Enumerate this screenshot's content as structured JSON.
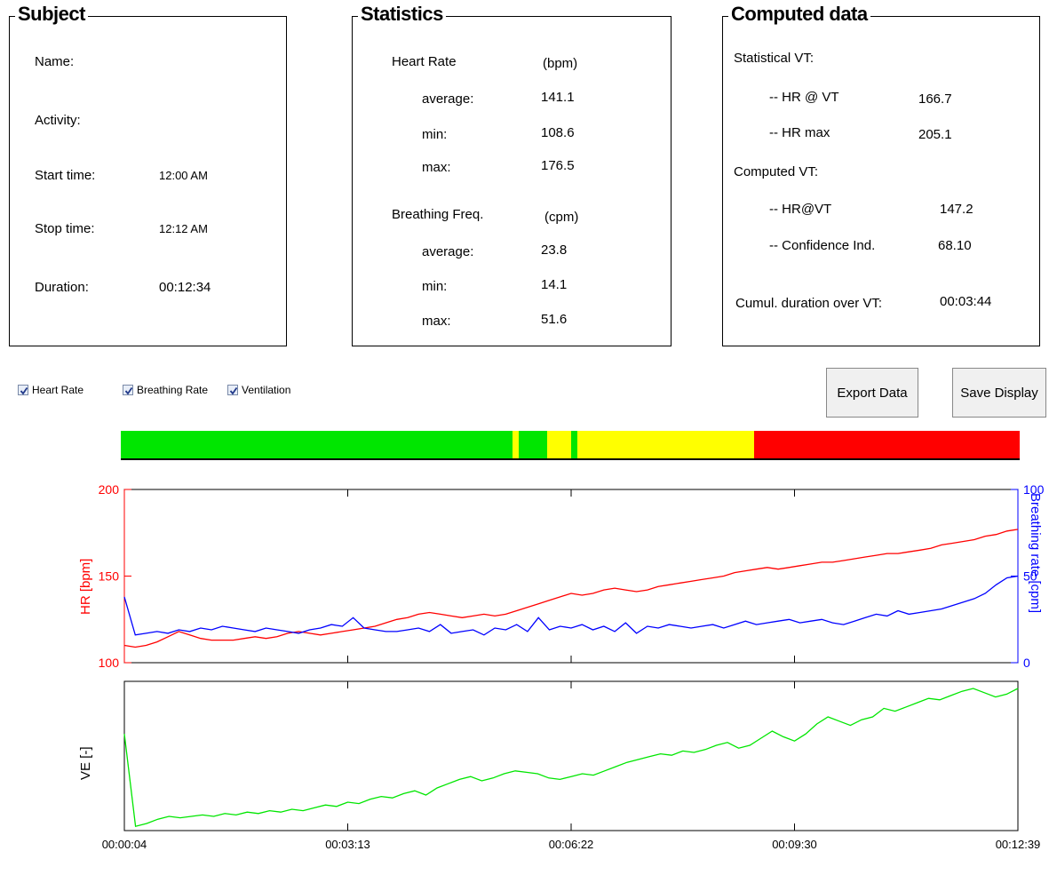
{
  "subject": {
    "title": "Subject",
    "name_label": "Name:",
    "activity_label": "Activity:",
    "start_label": "Start time:",
    "start_value": "12:00 AM",
    "stop_label": "Stop time:",
    "stop_value": "12:12 AM",
    "duration_label": "Duration:",
    "duration_value": "00:12:34"
  },
  "statistics": {
    "title": "Statistics",
    "hr_label": "Heart Rate",
    "hr_unit": "(bpm)",
    "hr_avg_label": "average:",
    "hr_avg": "141.1",
    "hr_min_label": "min:",
    "hr_min": "108.6",
    "hr_max_label": "max:",
    "hr_max": "176.5",
    "bf_label": "Breathing Freq.",
    "bf_unit": "(cpm)",
    "bf_avg_label": "average:",
    "bf_avg": "23.8",
    "bf_min_label": "min:",
    "bf_min": "14.1",
    "bf_max_label": "max:",
    "bf_max": "51.6"
  },
  "computed": {
    "title": "Computed data",
    "stat_vt_label": "Statistical VT:",
    "hr_at_vt_label": "-- HR @ VT",
    "hr_at_vt": "166.7",
    "hr_max_label": "-- HR max",
    "hr_max": "205.1",
    "comp_vt_label": "Computed VT:",
    "comp_hr_vt_label": "-- HR@VT",
    "comp_hr_vt": "147.2",
    "confidence_label": "-- Confidence Ind.",
    "confidence": "68.10",
    "cumul_label": "Cumul. duration over VT:",
    "cumul": "00:03:44"
  },
  "checkboxes": [
    {
      "label": "Heart Rate",
      "checked": true
    },
    {
      "label": "Breathing Rate",
      "checked": true
    },
    {
      "label": "Ventilation",
      "checked": true
    }
  ],
  "buttons": {
    "export": "Export Data",
    "save": "Save Display"
  },
  "zone_bar": {
    "colors": {
      "green": "#00e600",
      "yellow": "#ffff00",
      "red": "#ff0000"
    },
    "segments": [
      {
        "color": "green",
        "fraction": 0.4355
      },
      {
        "color": "yellow",
        "fraction": 0.0069
      },
      {
        "color": "green",
        "fraction": 0.0316
      },
      {
        "color": "yellow",
        "fraction": 0.0267
      },
      {
        "color": "green",
        "fraction": 0.0069
      },
      {
        "color": "yellow",
        "fraction": 0.1965
      },
      {
        "color": "red",
        "fraction": 0.2959
      }
    ]
  },
  "chart_data": [
    {
      "type": "line",
      "xlabel": "",
      "x_ticks": [
        "00:00:04",
        "00:03:13",
        "00:06:22",
        "00:09:30",
        "00:12:39"
      ],
      "ylabel": "HR [bpm]",
      "ylim": [
        100,
        200
      ],
      "y_ticks": [
        "100",
        "150",
        "200"
      ],
      "y2label": "Breathing rate [cpm]",
      "y2lim": [
        0,
        100
      ],
      "y2_ticks": [
        "0",
        "50",
        "100"
      ],
      "colors": {
        "hr": "#ff0000",
        "br": "#0000ff",
        "ve": "#00e600"
      },
      "series": [
        {
          "key": "hr",
          "axis": "left",
          "values": [
            110,
            109,
            110,
            112,
            115,
            118,
            116,
            114,
            113,
            113,
            113,
            114,
            115,
            114,
            115,
            117,
            118,
            117,
            116,
            117,
            118,
            119,
            120,
            121,
            123,
            125,
            126,
            128,
            129,
            128,
            127,
            126,
            127,
            128,
            127,
            128,
            130,
            132,
            134,
            136,
            138,
            140,
            139,
            140,
            142,
            143,
            142,
            141,
            142,
            144,
            145,
            146,
            147,
            148,
            149,
            150,
            152,
            153,
            154,
            155,
            154,
            155,
            156,
            157,
            158,
            158,
            159,
            160,
            161,
            162,
            163,
            163,
            164,
            165,
            166,
            168,
            169,
            170,
            171,
            173,
            174,
            176,
            177
          ]
        },
        {
          "key": "br",
          "axis": "right",
          "values": [
            38,
            16,
            17,
            18,
            17,
            19,
            18,
            20,
            19,
            21,
            20,
            19,
            18,
            20,
            19,
            18,
            17,
            19,
            20,
            22,
            21,
            26,
            20,
            19,
            18,
            18,
            19,
            20,
            18,
            22,
            17,
            18,
            19,
            16,
            20,
            19,
            22,
            18,
            26,
            19,
            21,
            20,
            22,
            19,
            21,
            18,
            23,
            17,
            21,
            20,
            22,
            21,
            20,
            21,
            22,
            20,
            22,
            24,
            22,
            23,
            24,
            25,
            23,
            24,
            25,
            23,
            22,
            24,
            26,
            28,
            27,
            30,
            28,
            29,
            30,
            31,
            33,
            35,
            37,
            40,
            45,
            49,
            50
          ]
        },
        {
          "key": "ve",
          "axis": "none",
          "values": [
            0.68,
            0.03,
            0.05,
            0.08,
            0.1,
            0.09,
            0.1,
            0.11,
            0.1,
            0.12,
            0.11,
            0.13,
            0.12,
            0.14,
            0.13,
            0.15,
            0.14,
            0.16,
            0.18,
            0.17,
            0.2,
            0.19,
            0.22,
            0.24,
            0.23,
            0.26,
            0.28,
            0.25,
            0.3,
            0.33,
            0.36,
            0.38,
            0.35,
            0.37,
            0.4,
            0.42,
            0.41,
            0.4,
            0.37,
            0.36,
            0.38,
            0.4,
            0.39,
            0.42,
            0.45,
            0.48,
            0.5,
            0.52,
            0.54,
            0.53,
            0.56,
            0.55,
            0.57,
            0.6,
            0.62,
            0.58,
            0.6,
            0.65,
            0.7,
            0.66,
            0.63,
            0.68,
            0.75,
            0.8,
            0.77,
            0.74,
            0.78,
            0.8,
            0.86,
            0.84,
            0.87,
            0.9,
            0.93,
            0.92,
            0.95,
            0.98,
            1.0,
            0.97,
            0.94,
            0.96,
            1.0
          ]
        }
      ]
    }
  ]
}
